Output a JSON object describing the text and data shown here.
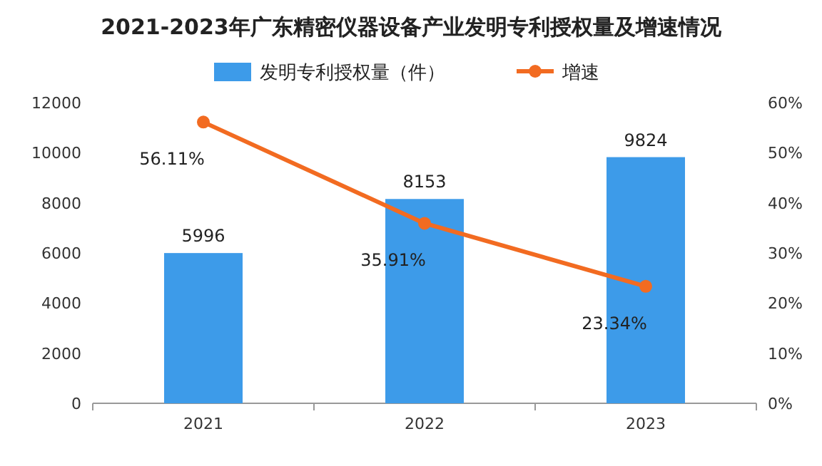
{
  "chart_data": {
    "type": "bar",
    "title": "2021-2023年广东精密仪器设备产业发明专利授权量及增速情况",
    "categories": [
      "2021",
      "2022",
      "2023"
    ],
    "series": [
      {
        "name": "发明专利授权量（件）",
        "color": "#3d9be9",
        "values": [
          5996,
          8153,
          9824
        ]
      },
      {
        "name": "增速",
        "type": "line",
        "axis": "y2",
        "color": "#f26b21",
        "values": [
          56.11,
          35.91,
          23.34
        ],
        "value_labels": [
          "56.11%",
          "35.91%",
          "23.34%"
        ]
      }
    ],
    "ylim": [
      0,
      12000
    ],
    "yticks": [
      0,
      2000,
      4000,
      6000,
      8000,
      10000,
      12000
    ],
    "y2lim": [
      0,
      60
    ],
    "y2ticks": [
      {
        "value": 0,
        "label": "0%"
      },
      {
        "value": 10,
        "label": "10%"
      },
      {
        "value": 20,
        "label": "20%"
      },
      {
        "value": 30,
        "label": "30%"
      },
      {
        "value": 40,
        "label": "40%"
      },
      {
        "value": 50,
        "label": "50%"
      },
      {
        "value": 60,
        "label": "60%"
      }
    ],
    "data_labels": true,
    "legend": "top",
    "marker": "circle",
    "grid": false
  }
}
